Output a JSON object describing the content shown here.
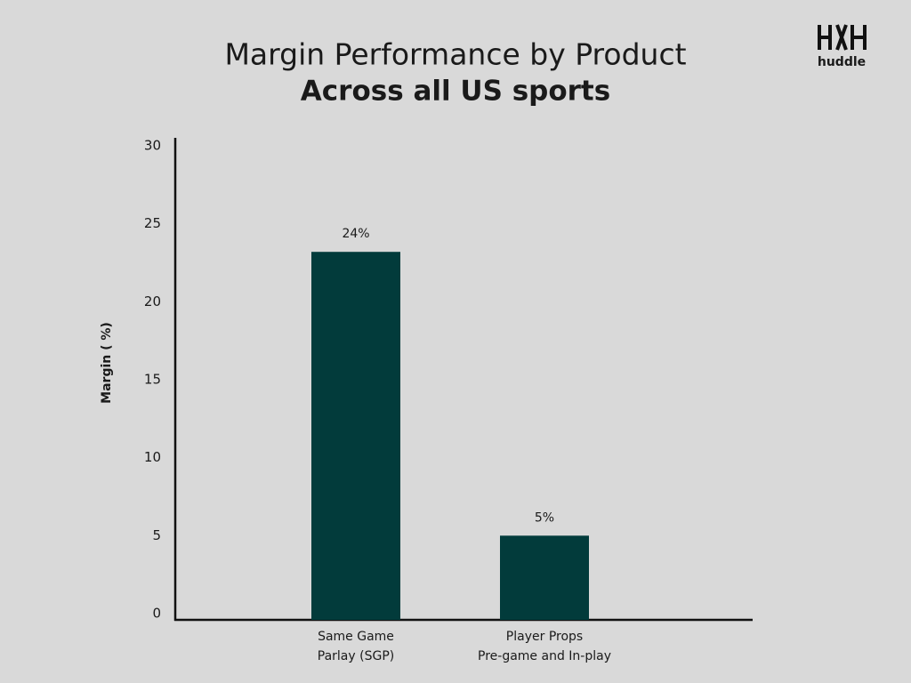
{
  "chart_data": {
    "type": "bar",
    "title": "Margin Performance by Product",
    "subtitle": "Across all US sports",
    "y_label": "Margin ( %)",
    "logo": "huddle",
    "categories": [
      [
        "Same Game",
        "Parlay (SGP)"
      ],
      [
        "Player Props",
        "Pre-game and In-play"
      ]
    ],
    "values": [
      23.6,
      5.4
    ],
    "value_labels": [
      "24%",
      "5%"
    ],
    "color": "#023b3b",
    "ylim": [
      0,
      30
    ],
    "yticks": [
      0,
      5,
      10,
      15,
      20,
      25,
      30
    ],
    "grid": false
  }
}
